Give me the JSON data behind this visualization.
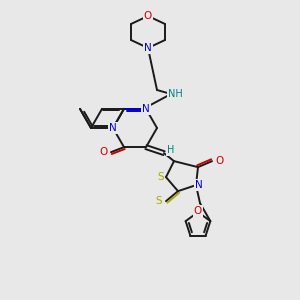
{
  "bg_color": "#e8e8e8",
  "C": "#1a1a1a",
  "N": "#0000cc",
  "O": "#cc0000",
  "S": "#aaaa00",
  "H_col": "#008080",
  "figsize": [
    3.0,
    3.0
  ],
  "dpi": 100,
  "lw": 1.4,
  "fs": 7.0
}
